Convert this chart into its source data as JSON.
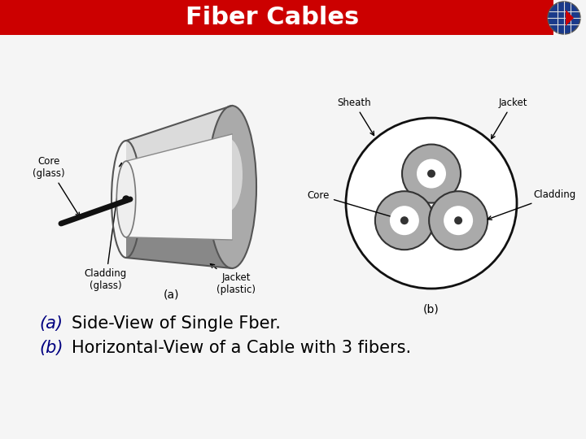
{
  "title": "Fiber Cables",
  "title_bg_color": "#cc0000",
  "title_text_color": "#ffffff",
  "bg_color": "#f5f5f5",
  "label_a": "(a)",
  "label_b": "(b)",
  "desc_a": "Side-View of Single Fber.",
  "desc_b": "Horizontal-View of a Cable with 3 fibers.",
  "desc_color": "#000000",
  "desc_label_color": "#000080",
  "jacket_dark": "#888888",
  "jacket_mid": "#aaaaaa",
  "jacket_light": "#cccccc",
  "jacket_highlight": "#e8e8e8",
  "cladding_color": "#f5f5f5",
  "core_color": "#111111",
  "circle_gray": "#aaaaaa",
  "circle_white": "#ffffff",
  "circle_dot": "#333333",
  "outer_circle_color": "#111111",
  "globe_bg": "#1a3a8a",
  "globe_grid": "#dddddd",
  "globe_arrow": "#cc0000"
}
